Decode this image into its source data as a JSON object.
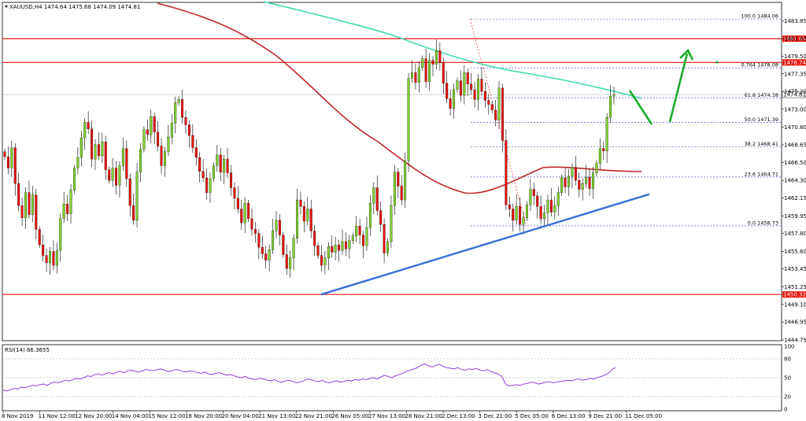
{
  "header": {
    "symbol_line": "XAUUSD,H4  1474.64 1475.68 1474.09 1474.81"
  },
  "chart_data": [
    {
      "type": "candlestick",
      "symbol": "XAUUSD,H4",
      "ohlc_header": {
        "open": 1474.64,
        "high": 1475.68,
        "low": 1474.09,
        "close": 1474.81
      },
      "ylim": [
        1444.75,
        1486.0
      ],
      "y_ticks": [
        "1483.85",
        "1481.65",
        "1479.50",
        "1477.35",
        "1475.20",
        "1473.00",
        "1470.80",
        "1468.65",
        "1466.50",
        "1464.30",
        "1462.15",
        "1459.95",
        "1457.80",
        "1455.60",
        "1453.45",
        "1451.25",
        "1449.10",
        "1446.95",
        "1444.75"
      ],
      "x_ticks": [
        "8 Nov 2019",
        "11 Nov 12:00",
        "12 Nov 20:00",
        "14 Nov 04:00",
        "15 Nov 12:00",
        "18 Nov 20:00",
        "20 Nov 04:00",
        "21 Nov 13:00",
        "22 Nov 21:00",
        "26 Nov 05:00",
        "27 Nov 13:00",
        "28 Nov 21:00",
        "2 Dec 13:00",
        "3 Dec 21:00",
        "5 Dec 05:00",
        "6 Dec 13:00",
        "9 Dec 21:00",
        "11 Dec 05:00"
      ],
      "candle_colors": {
        "bull": "#7fd02b",
        "bear": "#e8120c",
        "wick": "#000000"
      },
      "closes": [
        1467.2,
        1465.8,
        1468.3,
        1463.9,
        1461.2,
        1459.7,
        1462.8,
        1460.1,
        1462.5,
        1458.3,
        1456.4,
        1455.1,
        1454.2,
        1455.6,
        1453.9,
        1455.7,
        1459.6,
        1461.4,
        1460.2,
        1463.1,
        1465.8,
        1467.1,
        1469.5,
        1471.4,
        1470.6,
        1466.9,
        1468.7,
        1467.3,
        1469.0,
        1465.6,
        1464.3,
        1465.8,
        1463.7,
        1466.1,
        1468.2,
        1464.5,
        1461.2,
        1459.4,
        1465.3,
        1468.1,
        1470.5,
        1469.9,
        1472.1,
        1470.2,
        1468.5,
        1466.1,
        1467.8,
        1469.6,
        1471.3,
        1473.8,
        1474.2,
        1472.0,
        1471.1,
        1469.8,
        1468.3,
        1467.1,
        1465.4,
        1464.6,
        1462.8,
        1464.5,
        1466.1,
        1467.4,
        1465.3,
        1466.9,
        1465.2,
        1463.4,
        1462.1,
        1460.8,
        1459.1,
        1461.5,
        1459.6,
        1458.3,
        1457.8,
        1456.1,
        1455.3,
        1454.5,
        1455.8,
        1458.1,
        1459.4,
        1457.6,
        1455.2,
        1453.5,
        1454.8,
        1457.2,
        1461.9,
        1461.1,
        1459.3,
        1460.8,
        1458.1,
        1456.3,
        1455.1,
        1453.9,
        1454.8,
        1456.2,
        1455.5,
        1456.4,
        1455.7,
        1456.8,
        1455.9,
        1456.9,
        1457.5,
        1458.7,
        1457.6,
        1456.3,
        1458.5,
        1461.5,
        1463.4,
        1460.6,
        1458.9,
        1455.4,
        1456.8,
        1461.2,
        1465.3,
        1463.6,
        1461.9,
        1466.7,
        1476.8,
        1477.5,
        1476.3,
        1478.1,
        1479.2,
        1476.4,
        1479.0,
        1478.5,
        1480.2,
        1478.7,
        1476.2,
        1474.3,
        1473.1,
        1475.4,
        1476.5,
        1474.7,
        1477.5,
        1476.1,
        1475.4,
        1474.2,
        1476.7,
        1475.2,
        1474.1,
        1473.6,
        1472.9,
        1471.7,
        1475.6,
        1469.2,
        1461.3,
        1460.8,
        1459.4,
        1461.1,
        1458.9,
        1459.7,
        1461.3,
        1463.2,
        1462.4,
        1461.1,
        1459.6,
        1460.3,
        1461.9,
        1460.4,
        1461.2,
        1462.8,
        1464.6,
        1463.5,
        1464.8,
        1465.9,
        1464.3,
        1463.2,
        1463.9,
        1464.7,
        1463.3,
        1465.2,
        1466.4,
        1468.2,
        1467.9,
        1472.0,
        1474.6,
        1474.81
      ],
      "moving_averages": [
        {
          "color": "#c0282a",
          "description": "red slower MA, falling from top-left to ~1462 and flattening near 1465"
        },
        {
          "color": "#3fdcb0",
          "description": "aqua MA, falling from top across to ~1475"
        }
      ],
      "horizontal_levels": [
        {
          "value": 1481.65,
          "label": "1481.65",
          "color": "#e8120c"
        },
        {
          "value": 1478.74,
          "label": "1478.74",
          "color": "#e8120c"
        },
        {
          "value": 1450.32,
          "label": "1450.32",
          "color": "#e8120c"
        }
      ],
      "fibonacci": [
        {
          "label": "100.0 1484.06",
          "value": 1484.06
        },
        {
          "label": "0.764 1478.08",
          "value": 1478.08
        },
        {
          "label": "61.8 1474.38",
          "value": 1474.38
        },
        {
          "label": "50.0 1471.39",
          "value": 1471.39
        },
        {
          "label": "38.2 1468.41",
          "value": 1468.41
        },
        {
          "label": "23.6 1464.71",
          "value": 1464.71
        },
        {
          "label": "0.0 1458.73",
          "value": 1458.73
        }
      ],
      "current_price": {
        "value": 1474.81,
        "label": "1474.81"
      },
      "trendline": {
        "color": "#3a6fd8",
        "from": 1450.32,
        "to": 1462.6
      },
      "annotations": [
        {
          "type": "arrow",
          "color": "#1aaa2a",
          "description": "green zig-zag projection: dip then rally toward 1481"
        }
      ]
    },
    {
      "type": "line",
      "title": "RSI(14) 66.3655",
      "ylim": [
        0,
        100
      ],
      "y_ticks": [
        "100",
        "80",
        "50",
        "20",
        "0"
      ],
      "levels": [
        80,
        50,
        20
      ],
      "color": "#8a2be2",
      "values": [
        30,
        29,
        31,
        33,
        32,
        35,
        34,
        36,
        38,
        37,
        39,
        40,
        38,
        41,
        43,
        42,
        44,
        46,
        45,
        47,
        49,
        48,
        50,
        53,
        52,
        55,
        56,
        54,
        57,
        58,
        56,
        59,
        60,
        58,
        61,
        62,
        60,
        59,
        61,
        63,
        62,
        61,
        63,
        64,
        62,
        60,
        61,
        63,
        62,
        60,
        59,
        61,
        60,
        58,
        57,
        59,
        56,
        55,
        57,
        58,
        56,
        54,
        55,
        53,
        51,
        50,
        52,
        49,
        48,
        47,
        49,
        48,
        46,
        45,
        47,
        44,
        43,
        45,
        46,
        44,
        42,
        43,
        45,
        48,
        47,
        45,
        44,
        46,
        43,
        42,
        44,
        45,
        43,
        44,
        46,
        45,
        47,
        46,
        48,
        47,
        49,
        50,
        48,
        51,
        54,
        52,
        50,
        53,
        55,
        57,
        60,
        62,
        64,
        66,
        70,
        72,
        69,
        67,
        70,
        71,
        68,
        66,
        65,
        64,
        66,
        63,
        62,
        64,
        63,
        65,
        62,
        61,
        63,
        60,
        58,
        56,
        52,
        40,
        37,
        38,
        39,
        38,
        40,
        41,
        43,
        42,
        40,
        41,
        43,
        44,
        42,
        43,
        44,
        45,
        46,
        45,
        47,
        48,
        46,
        47,
        49,
        48,
        50,
        52,
        54,
        57,
        63,
        66.3655
      ]
    }
  ]
}
